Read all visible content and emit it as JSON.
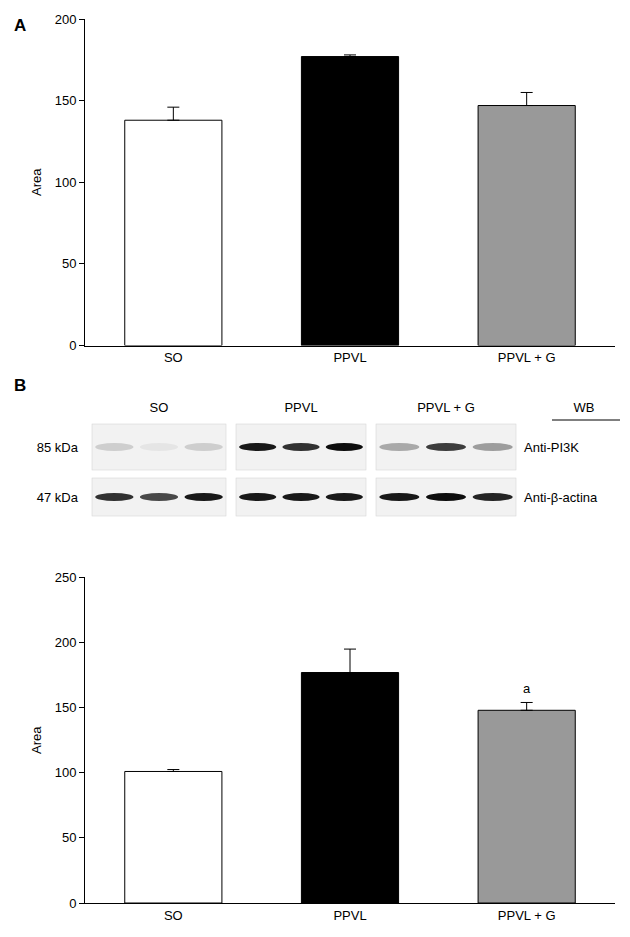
{
  "chart_data": [
    {
      "type": "bar",
      "title": "A",
      "y_label": "Area",
      "categories": [
        "SO",
        "PPVL",
        "PPVL + G"
      ],
      "values": [
        138,
        177,
        147
      ],
      "errors": [
        8,
        1,
        8
      ],
      "colors": [
        "#ffffff",
        "#000000",
        "#999999"
      ],
      "ylim": [
        0,
        200
      ],
      "yticks": [
        0,
        50,
        100,
        150,
        200
      ],
      "grid": false
    },
    {
      "type": "bar",
      "title": "B",
      "y_label": "Area",
      "categories": [
        "SO",
        "PPVL",
        "PPVL + G"
      ],
      "values": [
        101,
        177,
        148
      ],
      "errors": [
        1.5,
        18,
        6
      ],
      "colors": [
        "#ffffff",
        "#000000",
        "#999999"
      ],
      "ylim": [
        0,
        250
      ],
      "yticks": [
        0,
        50,
        100,
        150,
        200,
        250
      ],
      "grid": false,
      "annotations": [
        {
          "category": "PPVL + G",
          "text": "a"
        }
      ]
    }
  ],
  "blot": {
    "header": "WB",
    "lanes": [
      "SO",
      "PPVL",
      "PPVL + G"
    ],
    "rows": [
      {
        "size": "85 kDa",
        "antibody": "Anti-PI3K",
        "band_intensity": [
          [
            0.15,
            0.05,
            0.15
          ],
          [
            0.9,
            0.8,
            0.95
          ],
          [
            0.3,
            0.75,
            0.35
          ]
        ]
      },
      {
        "size": "47 kDa",
        "antibody": "Anti-β-actina",
        "band_intensity": [
          [
            0.8,
            0.7,
            0.9
          ],
          [
            0.9,
            0.9,
            0.9
          ],
          [
            0.9,
            0.95,
            0.85
          ]
        ]
      }
    ]
  }
}
